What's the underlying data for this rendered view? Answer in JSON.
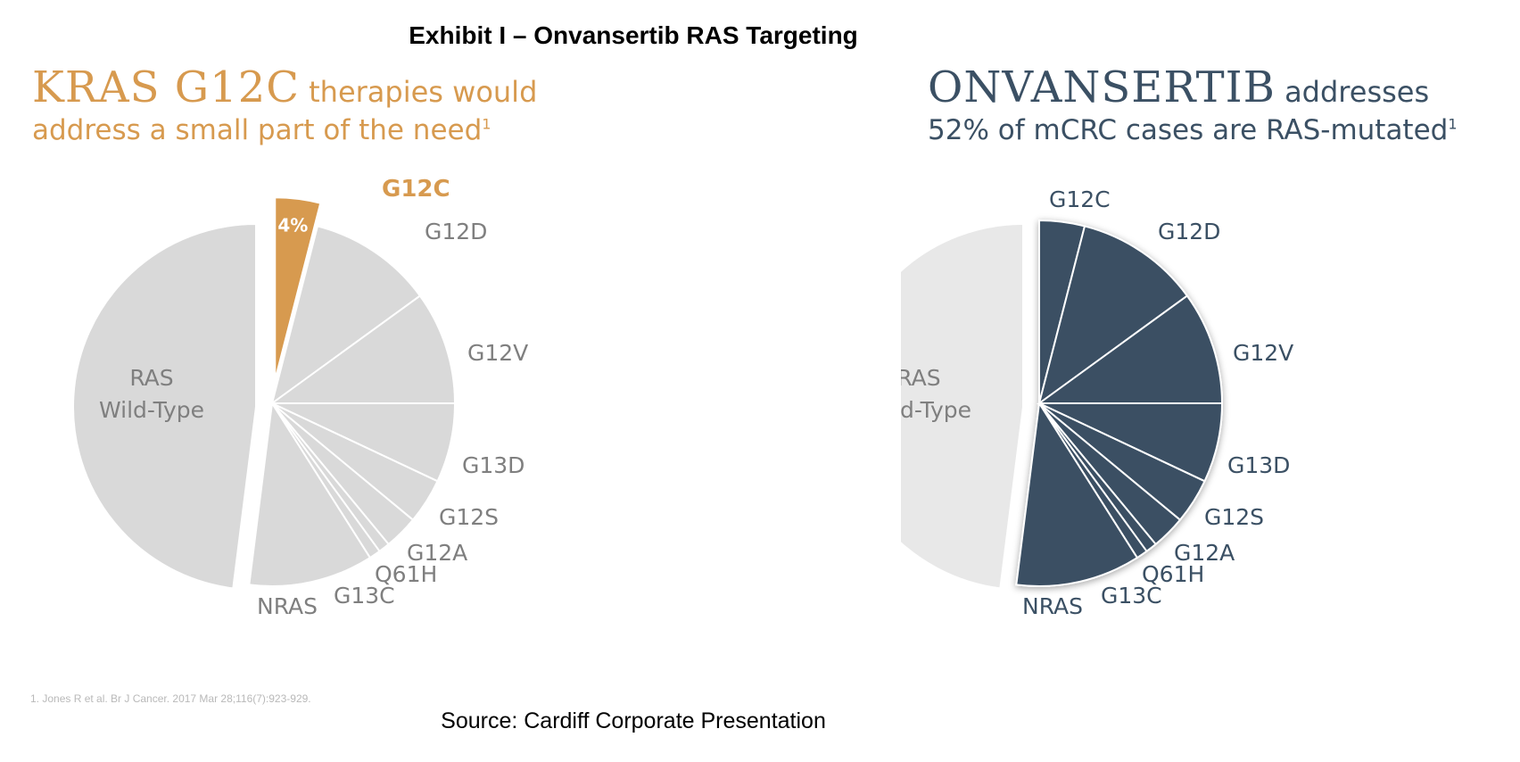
{
  "exhibit_title": "Exhibit I – Onvansertib RAS Targeting",
  "left_headline": {
    "big": "KRAS G12C",
    "small": " therapies would",
    "line2": "address a small part of the need",
    "sup": "1"
  },
  "right_headline": {
    "big": "ONVANSERTIB",
    "small": " addresses",
    "line2": "52% of mCRC cases are RAS-mutated",
    "sup": "1"
  },
  "footnote": "1.    Jones R et al. Br J Cancer. 2017 Mar 28;116(7):923-929.",
  "source": "Source: Cardiff Corporate Presentation",
  "colors": {
    "orange": "#d79a4f",
    "navy": "#3b5064",
    "gray": "#d9d9d9",
    "light_gray": "#e8e8e8",
    "label_gray": "#7f7f7f"
  },
  "chart_data": [
    {
      "type": "pie",
      "title": "KRAS G12C therapies would address a small part of the need",
      "labels": [
        "G12C",
        "G12D",
        "G12V",
        "G13D",
        "G12S",
        "G12A",
        "Q61H",
        "G13C",
        "NRAS",
        "RAS Wild-Type"
      ],
      "values": [
        4,
        11,
        10,
        7,
        4,
        3,
        1,
        1,
        11,
        48
      ],
      "data_labels": {
        "G12C": "4%"
      },
      "highlight": "G12C",
      "wildtype_label": [
        "RAS",
        "Wild-Type"
      ]
    },
    {
      "type": "pie",
      "title": "ONVANSERTIB addresses 52% of mCRC cases are RAS-mutated",
      "labels": [
        "G12C",
        "G12D",
        "G12V",
        "G13D",
        "G12S",
        "G12A",
        "Q61H",
        "G13C",
        "NRAS",
        "RAS Wild-Type"
      ],
      "values": [
        4,
        11,
        10,
        7,
        4,
        3,
        1,
        1,
        11,
        48
      ],
      "highlight": "RAS-mutated",
      "wildtype_label": [
        "RAS",
        "Wild-Type"
      ]
    }
  ]
}
